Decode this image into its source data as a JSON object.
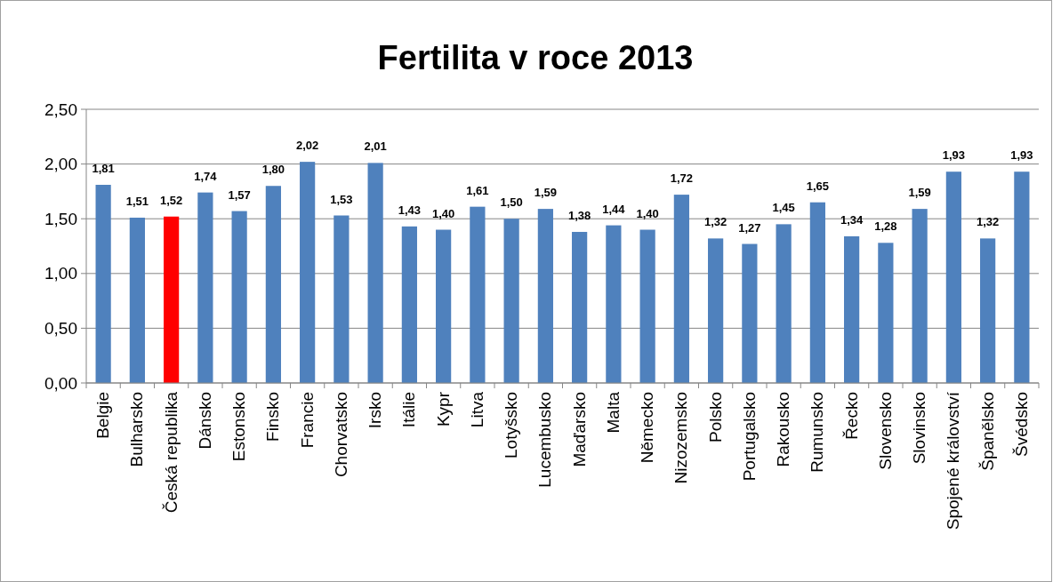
{
  "chart_data": {
    "type": "bar",
    "title": "Fertilita v roce 2013",
    "categories": [
      "Belgie",
      "Bulharsko",
      "Česká republika",
      "Dánsko",
      "Estonsko",
      "Finsko",
      "Francie",
      "Chorvatsko",
      "Irsko",
      "Itálie",
      "Kypr",
      "Litva",
      "Lotyšsko",
      "Lucembusko",
      "Maďarsko",
      "Malta",
      "Německo",
      "Nizozemsko",
      "Polsko",
      "Portugalsko",
      "Rakousko",
      "Rumunsko",
      "Řecko",
      "Slovensko",
      "Slovinsko",
      "Spojené království",
      "Španělsko",
      "Švédsko"
    ],
    "values": [
      1.81,
      1.51,
      1.52,
      1.74,
      1.57,
      1.8,
      2.02,
      1.53,
      2.01,
      1.43,
      1.4,
      1.61,
      1.5,
      1.59,
      1.38,
      1.44,
      1.4,
      1.72,
      1.32,
      1.27,
      1.45,
      1.65,
      1.34,
      1.28,
      1.59,
      1.93,
      1.32,
      1.93
    ],
    "value_labels": [
      "1,81",
      "1,51",
      "1,52",
      "1,74",
      "1,57",
      "1,80",
      "2,02",
      "1,53",
      "2,01",
      "1,43",
      "1,40",
      "1,61",
      "1,50",
      "1,59",
      "1,38",
      "1,44",
      "1,40",
      "1,72",
      "1,32",
      "1,27",
      "1,45",
      "1,65",
      "1,34",
      "1,28",
      "1,59",
      "1,93",
      "1,32",
      "1,93"
    ],
    "colors": [
      "#4f81bd",
      "#4f81bd",
      "#ff0000",
      "#4f81bd",
      "#4f81bd",
      "#4f81bd",
      "#4f81bd",
      "#4f81bd",
      "#4f81bd",
      "#4f81bd",
      "#4f81bd",
      "#4f81bd",
      "#4f81bd",
      "#4f81bd",
      "#4f81bd",
      "#4f81bd",
      "#4f81bd",
      "#4f81bd",
      "#4f81bd",
      "#4f81bd",
      "#4f81bd",
      "#4f81bd",
      "#4f81bd",
      "#4f81bd",
      "#4f81bd",
      "#4f81bd",
      "#4f81bd",
      "#4f81bd"
    ],
    "ylim": [
      0,
      2.5
    ],
    "yticks": [
      {
        "value": 0,
        "label": "0,00"
      },
      {
        "value": 0.5,
        "label": "0,50"
      },
      {
        "value": 1,
        "label": "1,00"
      },
      {
        "value": 1.5,
        "label": "1,50"
      },
      {
        "value": 2,
        "label": "2,00"
      },
      {
        "value": 2.5,
        "label": "2,50"
      }
    ],
    "grid": "y"
  }
}
